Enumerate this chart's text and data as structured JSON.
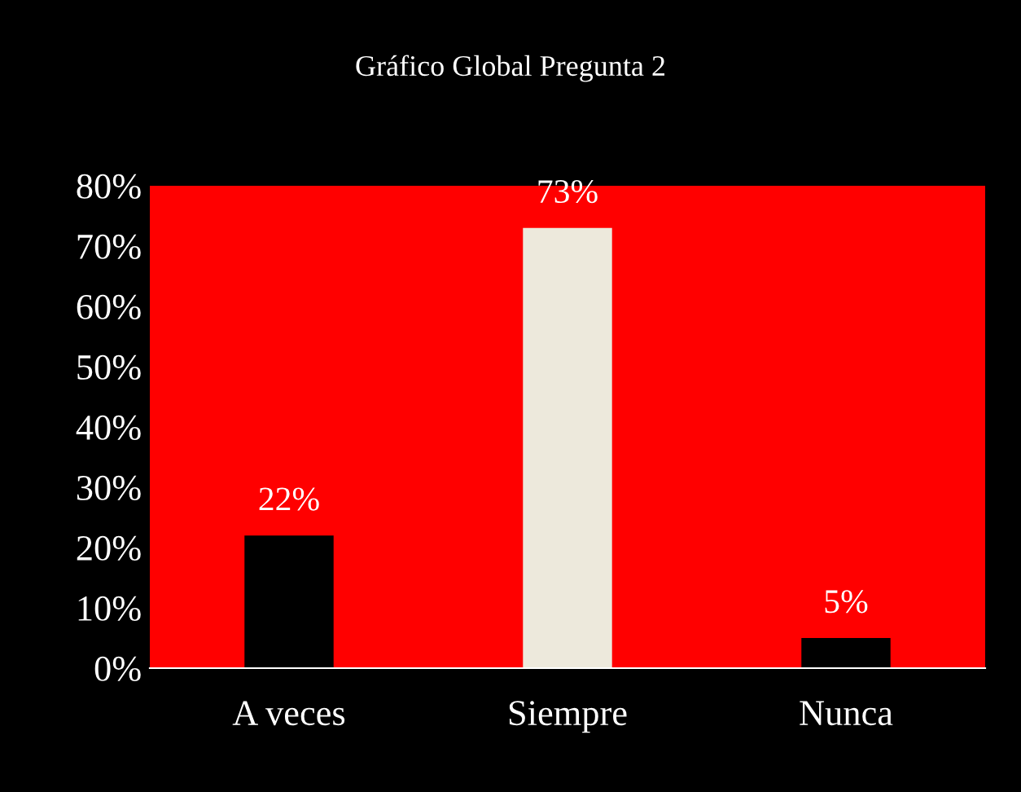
{
  "chart_data": {
    "type": "bar",
    "title": "Gráfico Global Pregunta 2",
    "categories": [
      "A veces",
      "Siempre",
      "Nunca"
    ],
    "values": [
      22,
      73,
      5
    ],
    "colors": [
      "#000000",
      "#ede9dc",
      "#000000"
    ],
    "value_labels": [
      "22%",
      "73%",
      "5%"
    ],
    "ylim": [
      0,
      80
    ],
    "yticks": [
      {
        "value": 0,
        "label": "0%"
      },
      {
        "value": 10,
        "label": "10%"
      },
      {
        "value": 20,
        "label": "20%"
      },
      {
        "value": 30,
        "label": "30%"
      },
      {
        "value": 40,
        "label": "40%"
      },
      {
        "value": 50,
        "label": "50%"
      },
      {
        "value": 60,
        "label": "60%"
      },
      {
        "value": 70,
        "label": "70%"
      },
      {
        "value": 80,
        "label": "80%"
      }
    ],
    "grid": false,
    "legend": false
  }
}
